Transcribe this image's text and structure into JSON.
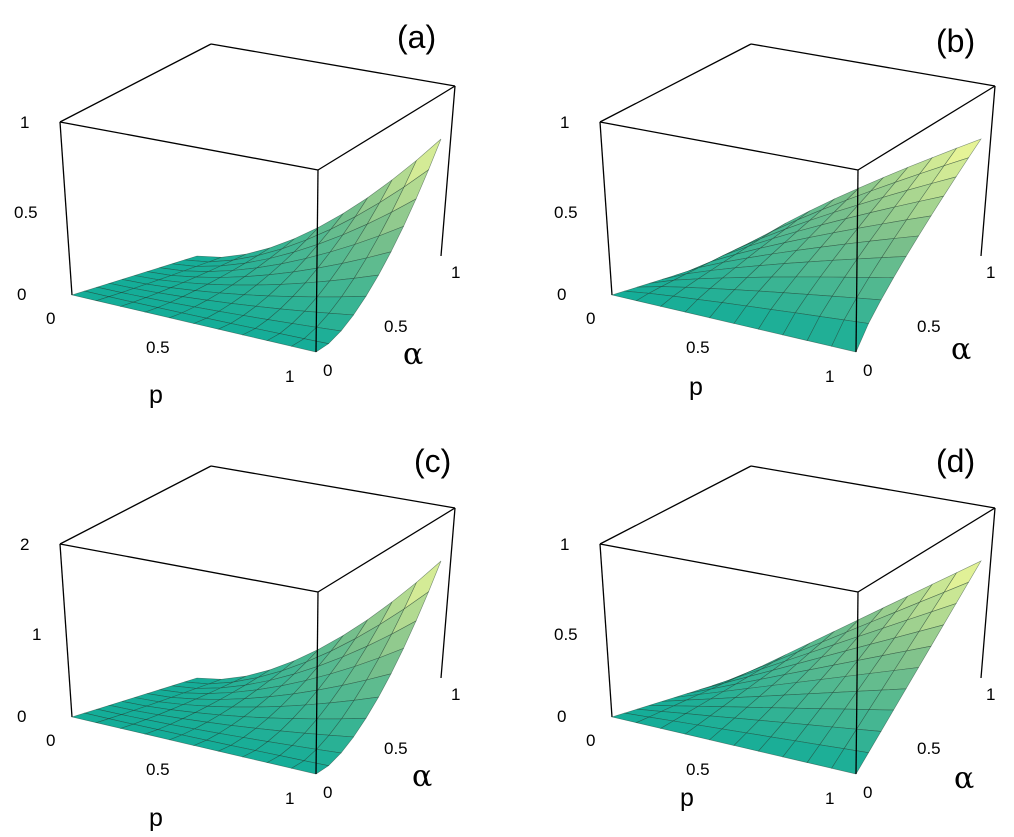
{
  "chart_data": [
    {
      "type": "surface3d",
      "panel_label": "(a)",
      "xlabel": "p",
      "ylabel": "α",
      "x_ticks": [
        "0",
        "0.5",
        "1"
      ],
      "y_ticks": [
        "0",
        "0.5",
        "1"
      ],
      "z_ticks": [
        "0",
        "0.5",
        "1"
      ],
      "xlim": [
        0,
        1
      ],
      "ylim": [
        0,
        1
      ],
      "zlim": [
        0,
        1
      ],
      "grid": "10x10",
      "surface_shape": "convex",
      "corner_values": {
        "p0_a0": 0,
        "p0_a1": 0,
        "p1_a0": 0,
        "p1_a1": 1
      }
    },
    {
      "type": "surface3d",
      "panel_label": "(b)",
      "xlabel": "p",
      "ylabel": "α",
      "x_ticks": [
        "0",
        "0.5",
        "1"
      ],
      "y_ticks": [
        "0",
        "0.5",
        "1"
      ],
      "z_ticks": [
        "0",
        "0.5",
        "1"
      ],
      "xlim": [
        0,
        1
      ],
      "ylim": [
        0,
        1
      ],
      "zlim": [
        0,
        1
      ],
      "grid": "10x10",
      "surface_shape": "concave",
      "corner_values": {
        "p0_a0": 0,
        "p0_a1": 0,
        "p1_a0": 0,
        "p1_a1": 1
      }
    },
    {
      "type": "surface3d",
      "panel_label": "(c)",
      "xlabel": "p",
      "ylabel": "α",
      "x_ticks": [
        "0",
        "0.5",
        "1"
      ],
      "y_ticks": [
        "0",
        "0.5",
        "1"
      ],
      "z_ticks": [
        "0",
        "1",
        "2"
      ],
      "xlim": [
        0,
        1
      ],
      "ylim": [
        0,
        1
      ],
      "zlim": [
        0,
        2
      ],
      "grid": "10x10",
      "surface_shape": "convex",
      "corner_values": {
        "p0_a0": 0,
        "p0_a1": 0,
        "p1_a0": 0,
        "p1_a1": 2
      }
    },
    {
      "type": "surface3d",
      "panel_label": "(d)",
      "xlabel": "p",
      "ylabel": "α",
      "x_ticks": [
        "0",
        "0.5",
        "1"
      ],
      "y_ticks": [
        "0",
        "0.5",
        "1"
      ],
      "z_ticks": [
        "0",
        "0.5",
        "1"
      ],
      "xlim": [
        0,
        1
      ],
      "ylim": [
        0,
        1
      ],
      "zlim": [
        0,
        1
      ],
      "grid": "10x10",
      "surface_shape": "linear",
      "corner_values": {
        "p0_a0": 0,
        "p0_a1": 0,
        "p1_a0": 0,
        "p1_a1": 1
      }
    }
  ],
  "colors": {
    "surface_low": "#14ad98",
    "surface_mid": "#7cc08b",
    "surface_high": "#fafd9a",
    "grid_lines": "#1e3a2e",
    "box": "#000000"
  }
}
